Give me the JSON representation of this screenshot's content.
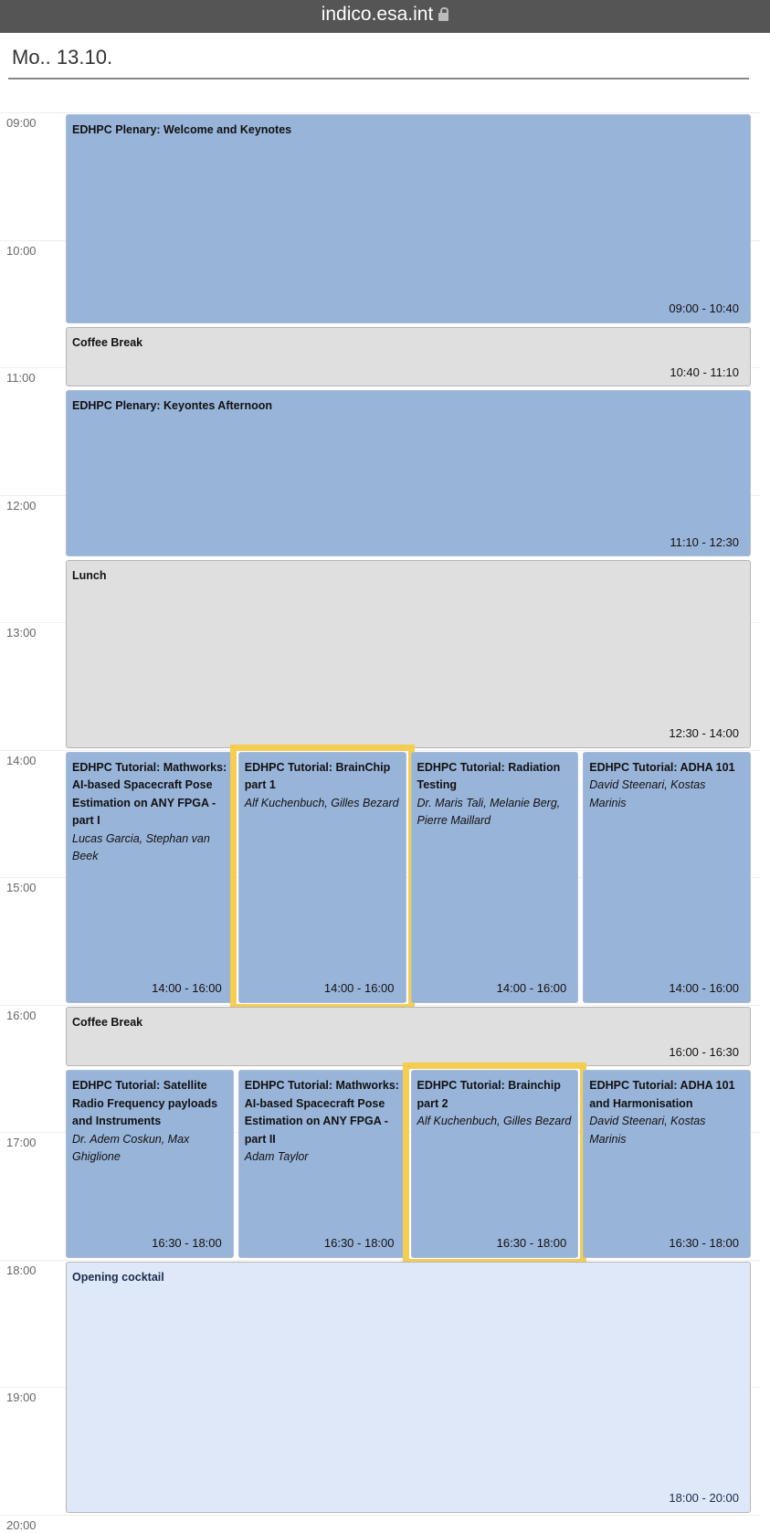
{
  "browser": {
    "url": "indico.esa.int",
    "lock_icon": "lock-icon"
  },
  "day_title": "Mo.. 13.10.",
  "hours": [
    "09:00",
    "10:00",
    "11:00",
    "12:00",
    "13:00",
    "14:00",
    "15:00",
    "16:00",
    "17:00",
    "18:00",
    "19:00",
    "20:00"
  ],
  "events": [
    {
      "title": "EDHPC Plenary: Welcome and Keynotes",
      "speakers": "",
      "time": "09:00 - 10:40",
      "start": 9.0,
      "end": 10.667,
      "col": 0,
      "span": 4,
      "kind": "blue"
    },
    {
      "title": "Coffee Break",
      "speakers": "",
      "time": "10:40 - 11:10",
      "start": 10.667,
      "end": 11.167,
      "col": 0,
      "span": 4,
      "kind": "grey"
    },
    {
      "title": "EDHPC Plenary: Keyontes Afternoon",
      "speakers": "",
      "time": "11:10 - 12:30",
      "start": 11.167,
      "end": 12.5,
      "col": 0,
      "span": 4,
      "kind": "blue"
    },
    {
      "title": "Lunch",
      "speakers": "",
      "time": "12:30 - 14:00",
      "start": 12.5,
      "end": 14.0,
      "col": 0,
      "span": 4,
      "kind": "grey"
    },
    {
      "title": "EDHPC Tutorial: Mathworks: AI-based Spacecraft Pose Estimation on ANY FPGA - part I",
      "speakers": "Lucas Garcia, Stephan van Beek",
      "time": "14:00 - 16:00",
      "start": 14.0,
      "end": 16.0,
      "col": 0,
      "span": 1,
      "kind": "blue"
    },
    {
      "title": "EDHPC Tutorial: BrainChip part 1",
      "speakers": "Alf Kuchenbuch, Gilles Bezard",
      "time": "14:00 - 16:00",
      "start": 14.0,
      "end": 16.0,
      "col": 1,
      "span": 1,
      "kind": "blue",
      "highlighted": true
    },
    {
      "title": "EDHPC Tutorial: Radiation Testing",
      "speakers": "Dr. Maris Tali, Melanie Berg, Pierre Maillard",
      "time": "14:00 - 16:00",
      "start": 14.0,
      "end": 16.0,
      "col": 2,
      "span": 1,
      "kind": "blue"
    },
    {
      "title": "EDHPC Tutorial: ADHA 101",
      "speakers": "David Steenari, Kostas Marinis",
      "time": "14:00 - 16:00",
      "start": 14.0,
      "end": 16.0,
      "col": 3,
      "span": 1,
      "kind": "blue"
    },
    {
      "title": "Coffee Break",
      "speakers": "",
      "time": "16:00 - 16:30",
      "start": 16.0,
      "end": 16.5,
      "col": 0,
      "span": 4,
      "kind": "grey"
    },
    {
      "title": "EDHPC Tutorial: Satellite Radio Frequency payloads and Instruments",
      "speakers": "Dr. Adem Coskun, Max Ghiglione",
      "time": "16:30 - 18:00",
      "start": 16.5,
      "end": 18.0,
      "col": 0,
      "span": 1,
      "kind": "blue"
    },
    {
      "title": "EDHPC Tutorial: Mathworks: AI-based Spacecraft Pose Estimation on ANY FPGA - part II",
      "speakers": "Adam Taylor",
      "time": "16:30 - 18:00",
      "start": 16.5,
      "end": 18.0,
      "col": 1,
      "span": 1,
      "kind": "blue"
    },
    {
      "title": "EDHPC Tutorial: Brainchip part 2",
      "speakers": "Alf Kuchenbuch, Gilles Bezard",
      "time": "16:30 - 18:00",
      "start": 16.5,
      "end": 18.0,
      "col": 2,
      "span": 1,
      "kind": "blue",
      "highlighted": true
    },
    {
      "title": "EDHPC Tutorial: ADHA 101 and Harmonisation",
      "speakers": "David Steenari, Kostas Marinis",
      "time": "16:30 - 18:00",
      "start": 16.5,
      "end": 18.0,
      "col": 3,
      "span": 1,
      "kind": "blue"
    },
    {
      "title": "Opening cocktail",
      "speakers": "",
      "time": "18:00 - 20:00",
      "start": 18.0,
      "end": 20.0,
      "col": 0,
      "span": 4,
      "kind": "light"
    }
  ],
  "colors": {
    "session": "#99b4d9",
    "break": "#dfdfdf",
    "social": "#dfe8f9",
    "highlight": "#f5cd4f"
  }
}
